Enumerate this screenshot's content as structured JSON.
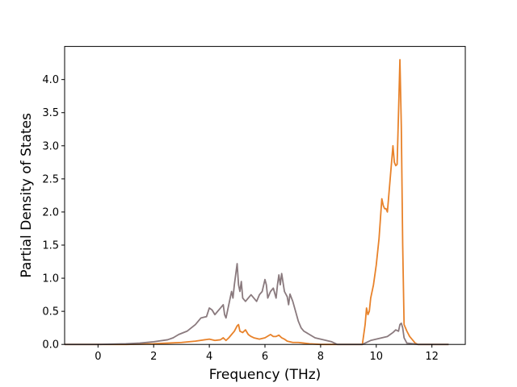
{
  "chart_data": {
    "type": "line",
    "xlabel": "Frequency (THz)",
    "ylabel": "Partial Density of States",
    "xlim": [
      -1.2,
      13.2
    ],
    "ylim": [
      0.0,
      4.5
    ],
    "xticks": [
      0,
      2,
      4,
      6,
      8,
      10,
      12
    ],
    "yticks": [
      0.0,
      0.5,
      1.0,
      1.5,
      2.0,
      2.5,
      3.0,
      3.5,
      4.0
    ],
    "ytick_format": "fixed1",
    "grid": false,
    "legend": "none",
    "series": [
      {
        "color": "#e8822a",
        "x": [
          -1.2,
          0.0,
          1.0,
          1.5,
          2.0,
          2.5,
          3.0,
          3.5,
          4.0,
          4.2,
          4.4,
          4.5,
          4.6,
          4.7,
          4.8,
          4.9,
          5.0,
          5.05,
          5.1,
          5.2,
          5.3,
          5.4,
          5.5,
          5.6,
          5.8,
          6.0,
          6.2,
          6.3,
          6.4,
          6.5,
          6.6,
          6.7,
          6.8,
          7.0,
          7.2,
          7.4,
          7.6,
          8.0,
          8.5,
          9.0,
          9.5,
          9.6,
          9.65,
          9.7,
          9.75,
          9.8,
          9.9,
          10.0,
          10.1,
          10.15,
          10.2,
          10.25,
          10.3,
          10.35,
          10.4,
          10.5,
          10.6,
          10.65,
          10.7,
          10.75,
          10.8,
          10.85,
          10.9,
          10.95,
          11.0,
          11.1,
          11.2,
          11.4,
          11.5,
          12.0,
          12.6
        ],
        "y": [
          0.0,
          0.0,
          0.0,
          0.005,
          0.01,
          0.02,
          0.03,
          0.05,
          0.08,
          0.06,
          0.07,
          0.1,
          0.06,
          0.1,
          0.15,
          0.2,
          0.28,
          0.3,
          0.2,
          0.18,
          0.22,
          0.15,
          0.12,
          0.1,
          0.08,
          0.1,
          0.15,
          0.12,
          0.12,
          0.14,
          0.1,
          0.08,
          0.05,
          0.03,
          0.03,
          0.02,
          0.01,
          0.0,
          0.0,
          0.0,
          0.0,
          0.3,
          0.55,
          0.45,
          0.5,
          0.7,
          0.9,
          1.2,
          1.6,
          1.9,
          2.2,
          2.1,
          2.05,
          2.05,
          2.0,
          2.5,
          3.0,
          2.75,
          2.7,
          2.72,
          3.5,
          4.3,
          3.3,
          1.5,
          0.3,
          0.2,
          0.12,
          0.02,
          0.0,
          0.0,
          0.0
        ]
      },
      {
        "color": "#8a7a7e",
        "x": [
          -1.2,
          0.0,
          0.5,
          1.0,
          1.5,
          2.0,
          2.5,
          2.7,
          2.9,
          3.2,
          3.5,
          3.7,
          3.9,
          4.0,
          4.1,
          4.2,
          4.3,
          4.4,
          4.5,
          4.55,
          4.6,
          4.7,
          4.8,
          4.85,
          4.9,
          5.0,
          5.05,
          5.1,
          5.15,
          5.2,
          5.3,
          5.4,
          5.5,
          5.6,
          5.7,
          5.8,
          5.9,
          6.0,
          6.05,
          6.1,
          6.2,
          6.3,
          6.4,
          6.45,
          6.5,
          6.55,
          6.6,
          6.7,
          6.8,
          6.85,
          6.9,
          7.0,
          7.1,
          7.2,
          7.3,
          7.4,
          7.6,
          7.8,
          8.0,
          8.2,
          8.4,
          8.5,
          8.6,
          9.0,
          9.5,
          9.6,
          9.8,
          10.0,
          10.2,
          10.4,
          10.5,
          10.6,
          10.7,
          10.8,
          10.85,
          10.9,
          10.95,
          11.0,
          11.1,
          11.5,
          12.0,
          12.6
        ],
        "y": [
          0.0,
          0.0,
          0.005,
          0.01,
          0.02,
          0.04,
          0.07,
          0.1,
          0.15,
          0.2,
          0.3,
          0.4,
          0.42,
          0.55,
          0.52,
          0.45,
          0.5,
          0.55,
          0.6,
          0.45,
          0.4,
          0.6,
          0.8,
          0.7,
          0.9,
          1.22,
          0.9,
          0.8,
          0.95,
          0.7,
          0.65,
          0.7,
          0.75,
          0.7,
          0.65,
          0.75,
          0.8,
          0.98,
          0.9,
          0.7,
          0.8,
          0.85,
          0.7,
          0.9,
          1.05,
          0.9,
          1.07,
          0.8,
          0.72,
          0.6,
          0.76,
          0.65,
          0.5,
          0.35,
          0.25,
          0.2,
          0.15,
          0.1,
          0.08,
          0.06,
          0.04,
          0.02,
          0.0,
          0.0,
          0.0,
          0.02,
          0.06,
          0.08,
          0.1,
          0.12,
          0.15,
          0.18,
          0.22,
          0.2,
          0.3,
          0.32,
          0.25,
          0.1,
          0.02,
          0.0,
          0.0,
          0.0
        ]
      }
    ]
  }
}
